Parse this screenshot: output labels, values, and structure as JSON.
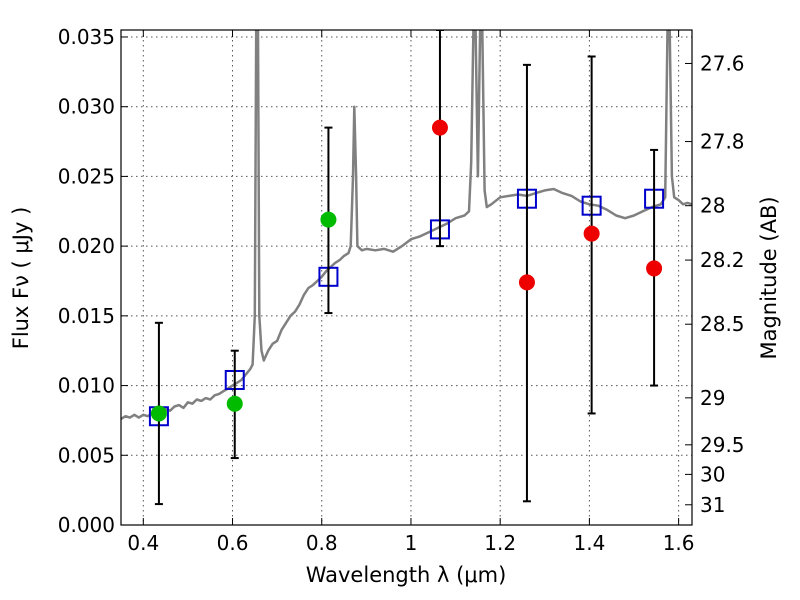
{
  "chart_data": {
    "type": "scatter",
    "xlabel": "Wavelength  λ (μm)",
    "ylabel": "Flux  Fν  ( μJy )",
    "y2label": "Magnitude (AB)",
    "xlim": [
      0.35,
      1.63
    ],
    "ylim": [
      0.0,
      0.0355
    ],
    "grid": true,
    "x_ticks": [
      0.4,
      0.6,
      0.8,
      1.0,
      1.2,
      1.4,
      1.6
    ],
    "x_tick_labels": [
      "0.4",
      "0.6",
      "0.8",
      "1",
      "1.2",
      "1.4",
      "1.6"
    ],
    "y_ticks": [
      0.0,
      0.005,
      0.01,
      0.015,
      0.02,
      0.025,
      0.03,
      0.035
    ],
    "y_tick_labels": [
      "0.000",
      "0.005",
      "0.010",
      "0.015",
      "0.020",
      "0.025",
      "0.030",
      "0.035"
    ],
    "y2_ticks": [
      {
        "label": "27.6",
        "flux": 0.0331
      },
      {
        "label": "27.8",
        "flux": 0.0275
      },
      {
        "label": "28",
        "flux": 0.0229
      },
      {
        "label": "28.2",
        "flux": 0.019
      },
      {
        "label": "28.5",
        "flux": 0.0144
      },
      {
        "label": "29",
        "flux": 0.00912
      },
      {
        "label": "29.5",
        "flux": 0.00575
      },
      {
        "label": "30",
        "flux": 0.00363
      },
      {
        "label": "31",
        "flux": 0.00145
      }
    ],
    "colors": {
      "model": "#808080",
      "model_photometry": "#0000cc",
      "detection": "#00bb00",
      "nondetection": "#ee0000",
      "errorbar": "#000000",
      "grid": "#555555"
    },
    "series": [
      {
        "kind": "line",
        "color": "#808080",
        "points": [
          [
            0.35,
            0.0076
          ],
          [
            0.36,
            0.0078
          ],
          [
            0.37,
            0.0077
          ],
          [
            0.38,
            0.0079
          ],
          [
            0.39,
            0.0077
          ],
          [
            0.4,
            0.0079
          ],
          [
            0.41,
            0.0078
          ],
          [
            0.42,
            0.008
          ],
          [
            0.43,
            0.0079
          ],
          [
            0.44,
            0.0081
          ],
          [
            0.45,
            0.0083
          ],
          [
            0.46,
            0.0082
          ],
          [
            0.47,
            0.0085
          ],
          [
            0.48,
            0.0086
          ],
          [
            0.49,
            0.0084
          ],
          [
            0.5,
            0.0088
          ],
          [
            0.51,
            0.0087
          ],
          [
            0.52,
            0.009
          ],
          [
            0.53,
            0.0089
          ],
          [
            0.54,
            0.0091
          ],
          [
            0.55,
            0.009
          ],
          [
            0.56,
            0.0093
          ],
          [
            0.57,
            0.0094
          ],
          [
            0.58,
            0.0096
          ],
          [
            0.59,
            0.0098
          ],
          [
            0.6,
            0.01
          ],
          [
            0.61,
            0.0102
          ],
          [
            0.62,
            0.0104
          ],
          [
            0.63,
            0.0108
          ],
          [
            0.64,
            0.0112
          ],
          [
            0.645,
            0.0115
          ],
          [
            0.65,
            0.015
          ],
          [
            0.653,
            0.0355
          ],
          [
            0.657,
            0.0355
          ],
          [
            0.66,
            0.015
          ],
          [
            0.665,
            0.0125
          ],
          [
            0.67,
            0.0118
          ],
          [
            0.68,
            0.0125
          ],
          [
            0.69,
            0.013
          ],
          [
            0.7,
            0.0132
          ],
          [
            0.71,
            0.014
          ],
          [
            0.72,
            0.0145
          ],
          [
            0.73,
            0.015
          ],
          [
            0.74,
            0.0153
          ],
          [
            0.75,
            0.0158
          ],
          [
            0.76,
            0.0165
          ],
          [
            0.77,
            0.017
          ],
          [
            0.78,
            0.0172
          ],
          [
            0.79,
            0.0175
          ],
          [
            0.8,
            0.0178
          ],
          [
            0.81,
            0.0182
          ],
          [
            0.82,
            0.0185
          ],
          [
            0.83,
            0.0188
          ],
          [
            0.84,
            0.019
          ],
          [
            0.85,
            0.0193
          ],
          [
            0.86,
            0.0195
          ],
          [
            0.865,
            0.02
          ],
          [
            0.87,
            0.025
          ],
          [
            0.873,
            0.03
          ],
          [
            0.877,
            0.025
          ],
          [
            0.88,
            0.02
          ],
          [
            0.89,
            0.0197
          ],
          [
            0.9,
            0.0198
          ],
          [
            0.92,
            0.0197
          ],
          [
            0.94,
            0.0198
          ],
          [
            0.96,
            0.0196
          ],
          [
            0.98,
            0.02
          ],
          [
            1.0,
            0.0205
          ],
          [
            1.02,
            0.0207
          ],
          [
            1.04,
            0.021
          ],
          [
            1.06,
            0.0213
          ],
          [
            1.08,
            0.0216
          ],
          [
            1.1,
            0.022
          ],
          [
            1.12,
            0.0222
          ],
          [
            1.13,
            0.0225
          ],
          [
            1.135,
            0.026
          ],
          [
            1.14,
            0.0355
          ],
          [
            1.145,
            0.0355
          ],
          [
            1.15,
            0.025
          ],
          [
            1.155,
            0.0355
          ],
          [
            1.16,
            0.0355
          ],
          [
            1.165,
            0.024
          ],
          [
            1.17,
            0.0228
          ],
          [
            1.18,
            0.023
          ],
          [
            1.2,
            0.0235
          ],
          [
            1.22,
            0.0236
          ],
          [
            1.24,
            0.0237
          ],
          [
            1.26,
            0.0236
          ],
          [
            1.28,
            0.0238
          ],
          [
            1.3,
            0.024
          ],
          [
            1.32,
            0.0241
          ],
          [
            1.34,
            0.0238
          ],
          [
            1.36,
            0.0236
          ],
          [
            1.38,
            0.0232
          ],
          [
            1.4,
            0.023
          ],
          [
            1.42,
            0.0229
          ],
          [
            1.44,
            0.0226
          ],
          [
            1.46,
            0.0222
          ],
          [
            1.48,
            0.022
          ],
          [
            1.5,
            0.0222
          ],
          [
            1.52,
            0.0225
          ],
          [
            1.54,
            0.0228
          ],
          [
            1.56,
            0.023
          ],
          [
            1.57,
            0.0235
          ],
          [
            1.575,
            0.0355
          ],
          [
            1.58,
            0.0355
          ],
          [
            1.585,
            0.025
          ],
          [
            1.59,
            0.0235
          ],
          [
            1.6,
            0.0233
          ],
          [
            1.61,
            0.023
          ],
          [
            1.62,
            0.0231
          ],
          [
            1.63,
            0.023
          ]
        ]
      },
      {
        "kind": "squares",
        "color": "#0000cc",
        "points": [
          [
            0.435,
            0.0078
          ],
          [
            0.605,
            0.0104
          ],
          [
            0.815,
            0.0178
          ],
          [
            1.065,
            0.0212
          ],
          [
            1.26,
            0.0234
          ],
          [
            1.405,
            0.0229
          ],
          [
            1.545,
            0.0234
          ]
        ]
      },
      {
        "kind": "errorbars",
        "color": "#000000",
        "points": [
          {
            "x": 0.435,
            "lo": 0.0015,
            "hi": 0.0145
          },
          {
            "x": 0.605,
            "lo": 0.0048,
            "hi": 0.0125
          },
          {
            "x": 0.815,
            "lo": 0.0152,
            "hi": 0.0285
          },
          {
            "x": 1.065,
            "lo": 0.02,
            "hi": 0.0355
          },
          {
            "x": 1.26,
            "lo": 0.0017,
            "hi": 0.033
          },
          {
            "x": 1.405,
            "lo": 0.008,
            "hi": 0.0336
          },
          {
            "x": 1.545,
            "lo": 0.01,
            "hi": 0.0269
          }
        ]
      },
      {
        "kind": "circles",
        "color": "#00bb00",
        "points": [
          [
            0.435,
            0.008
          ],
          [
            0.605,
            0.0087
          ],
          [
            0.815,
            0.0219
          ]
        ]
      },
      {
        "kind": "circles",
        "color": "#ee0000",
        "points": [
          [
            1.065,
            0.0285
          ],
          [
            1.26,
            0.0174
          ],
          [
            1.405,
            0.0209
          ],
          [
            1.545,
            0.0184
          ]
        ]
      }
    ]
  }
}
